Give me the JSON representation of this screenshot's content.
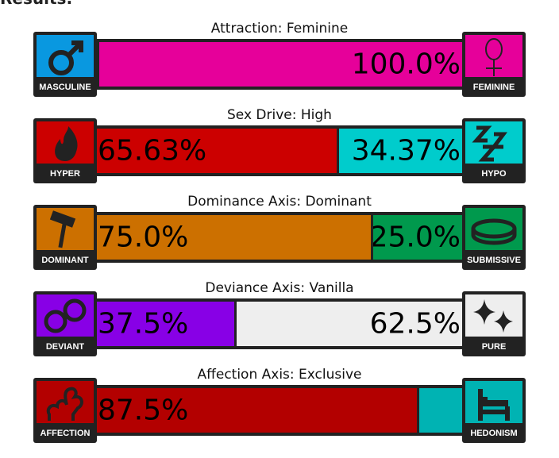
{
  "heading": "Results:",
  "axes": [
    {
      "title": "Attraction: Feminine",
      "left": {
        "label": "MASCULINE",
        "icon": "male-symbol-icon",
        "color": "#0998e0",
        "value": 0.0,
        "text": ""
      },
      "right": {
        "label": "FEMININE",
        "icon": "female-symbol-icon",
        "color": "#e6009a",
        "value": 100.0,
        "text": "100.0%"
      }
    },
    {
      "title": "Sex Drive: High",
      "left": {
        "label": "HYPER",
        "icon": "flame-icon",
        "color": "#cc0000",
        "value": 65.63,
        "text": "65.63%"
      },
      "right": {
        "label": "HYPO",
        "icon": "sleep-zzz-icon",
        "color": "#00cccc",
        "value": 34.37,
        "text": "34.37%"
      }
    },
    {
      "title": "Dominance Axis: Dominant",
      "left": {
        "label": "DOMINANT",
        "icon": "gavel-icon",
        "color": "#cc7000",
        "value": 75.0,
        "text": "75.0%"
      },
      "right": {
        "label": "SUBMISSIVE",
        "icon": "collar-icon",
        "color": "#00994d",
        "value": 25.0,
        "text": "25.0%"
      }
    },
    {
      "title": "Deviance Axis: Vanilla",
      "left": {
        "label": "DEVIANT",
        "icon": "handcuffs-icon",
        "color": "#8800e6",
        "value": 37.5,
        "text": "37.5%"
      },
      "right": {
        "label": "PURE",
        "icon": "sparkles-icon",
        "color": "#eeeeee",
        "value": 62.5,
        "text": "62.5%"
      }
    },
    {
      "title": "Affection Axis: Exclusive",
      "left": {
        "label": "AFFECTION",
        "icon": "hearts-icon",
        "color": "#b30000",
        "value": 87.5,
        "text": "87.5%"
      },
      "right": {
        "label": "HEDONISM",
        "icon": "bed-icon",
        "color": "#00b3b3",
        "value": 12.5,
        "text": ""
      }
    }
  ]
}
